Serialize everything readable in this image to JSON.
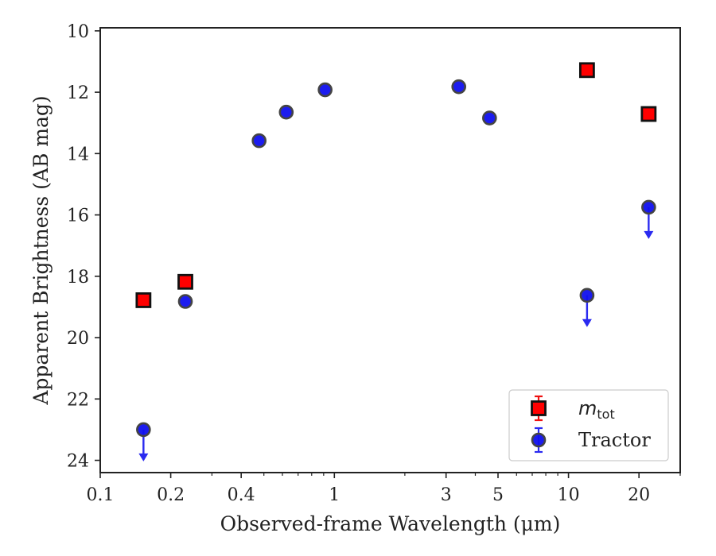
{
  "chart_data": {
    "type": "scatter",
    "xlabel": "Observed-frame Wavelength (μm)",
    "ylabel": "Apparent Brightness (AB mag)",
    "xscale": "log",
    "xlim": [
      0.1,
      30
    ],
    "ylim": [
      24.4,
      9.9
    ],
    "y_inverted": true,
    "x_ticks": [
      0.1,
      0.2,
      0.4,
      1,
      3,
      5,
      10,
      20
    ],
    "x_tick_labels": [
      "0.1",
      "0.2",
      "0.4",
      "1",
      "3",
      "5",
      "10",
      "20"
    ],
    "y_ticks": [
      10,
      12,
      14,
      16,
      18,
      20,
      22,
      24
    ],
    "y_tick_labels": [
      "10",
      "12",
      "14",
      "16",
      "18",
      "20",
      "22",
      "24"
    ],
    "legend_position": "lower right",
    "series": [
      {
        "name": "m_tot",
        "legend_label": "m",
        "legend_sub": "tot",
        "marker": "square",
        "color": "#ff0000",
        "edge": "#111111",
        "points": [
          {
            "x": 0.153,
            "y": 18.78
          },
          {
            "x": 0.231,
            "y": 18.18
          },
          {
            "x": 12.0,
            "y": 11.28
          },
          {
            "x": 22.0,
            "y": 12.71
          }
        ]
      },
      {
        "name": "Tractor",
        "legend_label": "Tractor",
        "marker": "circle",
        "color": "#1010ee",
        "edge": "#444444",
        "points": [
          {
            "x": 0.153,
            "y": 23.0,
            "upper_limit": true
          },
          {
            "x": 0.231,
            "y": 18.82
          },
          {
            "x": 0.477,
            "y": 13.58
          },
          {
            "x": 0.623,
            "y": 12.65
          },
          {
            "x": 0.913,
            "y": 11.92
          },
          {
            "x": 3.4,
            "y": 11.82
          },
          {
            "x": 4.6,
            "y": 12.84
          },
          {
            "x": 12.0,
            "y": 18.62,
            "upper_limit": true
          },
          {
            "x": 22.0,
            "y": 15.75,
            "upper_limit": true
          }
        ]
      }
    ]
  }
}
